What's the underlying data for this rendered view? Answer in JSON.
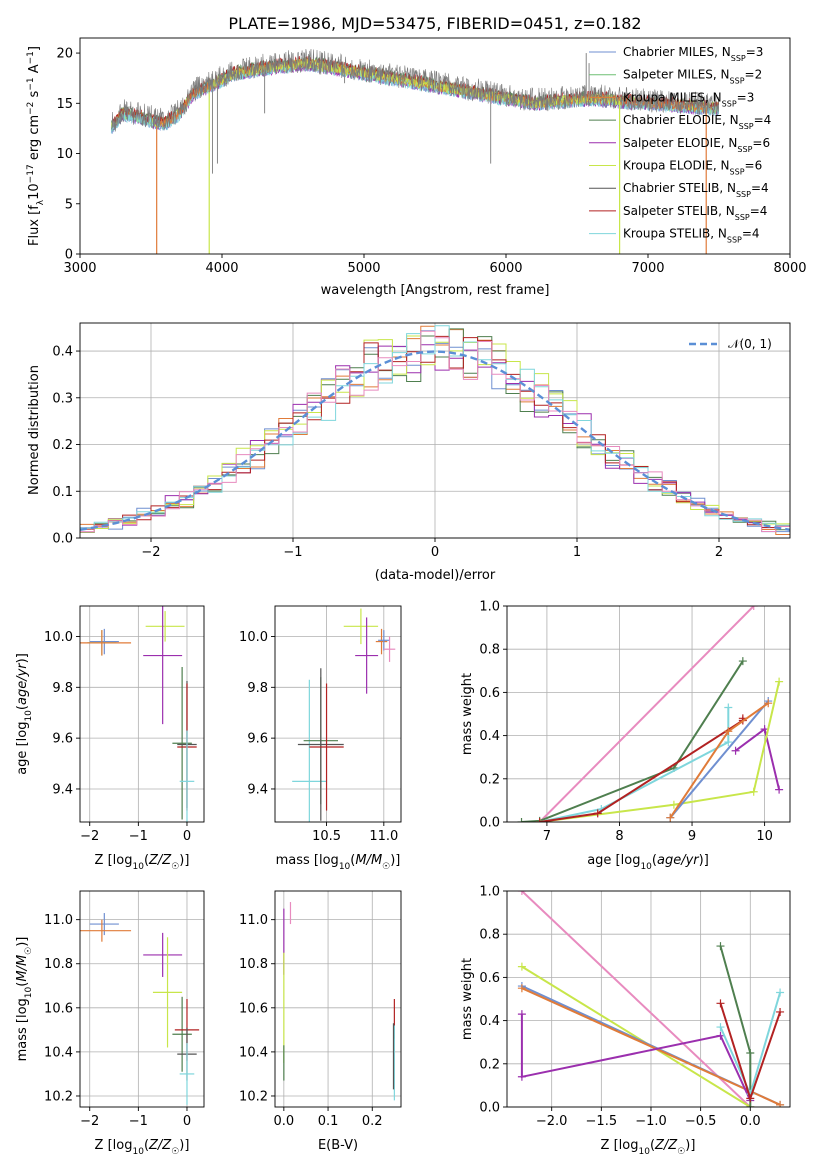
{
  "figure_title": "PLATE=1986, MJD=53475, FIBERID=0451, z=0.182",
  "colors": {
    "Chabrier MILES": "#6f8fd0",
    "Salpeter MILES": "#6fbf73",
    "Kroupa MILES": "#e07b39",
    "Chabrier ELODIE": "#4f7f4f",
    "Salpeter ELODIE": "#9b2fae",
    "Kroupa ELODIE": "#c8e64a",
    "Chabrier STELIB": "#555555",
    "Salpeter STELIB": "#b22222",
    "Kroupa STELIB": "#7fd6dc",
    "pink": "#e88bbf",
    "gauss": "#5b8fd6"
  },
  "chart_data": [
    {
      "id": "spectrum",
      "type": "line",
      "title": "PLATE=1986, MJD=53475, FIBERID=0451, z=0.182",
      "xlabel": "wavelength [Angstrom, rest frame]",
      "ylabel": "Flux [f_λ10^-17 erg cm^-2 s^-1 A^-1]",
      "xlim": [
        3000,
        8000
      ],
      "ylim": [
        0,
        21.5
      ],
      "xticks": [
        3000,
        4000,
        5000,
        6000,
        7000,
        8000
      ],
      "yticks": [
        0,
        5,
        10,
        15,
        20
      ],
      "grid": false,
      "legend_position": "top-right",
      "legend": [
        {
          "name": "Chabrier MILES",
          "nssp": "3"
        },
        {
          "name": "Salpeter MILES",
          "nssp": "2"
        },
        {
          "name": "Kroupa MILES",
          "nssp": "3"
        },
        {
          "name": "Chabrier ELODIE",
          "nssp": "4"
        },
        {
          "name": "Salpeter ELODIE",
          "nssp": "6"
        },
        {
          "name": "Kroupa ELODIE",
          "nssp": "6"
        },
        {
          "name": "Chabrier STELIB",
          "nssp": "4"
        },
        {
          "name": "Salpeter STELIB",
          "nssp": "4"
        },
        {
          "name": "Kroupa STELIB",
          "nssp": "4"
        }
      ],
      "data_range": [
        3220,
        7500
      ],
      "continuum": [
        [
          3220,
          12.5
        ],
        [
          3300,
          14
        ],
        [
          3450,
          13.5
        ],
        [
          3600,
          13
        ],
        [
          3700,
          14
        ],
        [
          3800,
          16
        ],
        [
          3950,
          17
        ],
        [
          4100,
          18
        ],
        [
          4300,
          18.5
        ],
        [
          4600,
          19
        ],
        [
          5000,
          18
        ],
        [
          5400,
          17
        ],
        [
          5800,
          16
        ],
        [
          6200,
          15
        ],
        [
          6600,
          15.5
        ],
        [
          7000,
          15
        ],
        [
          7500,
          14.5
        ]
      ],
      "emission_lines": [
        {
          "x": 6565,
          "y": 20
        },
        {
          "x": 6585,
          "y": 19
        },
        {
          "x": 4863,
          "y": 17
        }
      ],
      "absorption_lines": [
        {
          "x": 3933,
          "y": 8
        },
        {
          "x": 3968,
          "y": 9
        },
        {
          "x": 4300,
          "y": 14
        },
        {
          "x": 5892,
          "y": 9
        }
      ],
      "model_cutoffs": [
        {
          "series": "Kroupa MILES",
          "from": 3540,
          "to": 7410
        },
        {
          "series": "Kroupa ELODIE",
          "from": 3910,
          "to": 6800
        }
      ]
    },
    {
      "id": "residuals",
      "type": "histogram",
      "xlabel": "(data-model)/error",
      "ylabel": "Normed distribution",
      "xlim": [
        -2.5,
        2.5
      ],
      "ylim": [
        0,
        0.46
      ],
      "xticks": [
        -2,
        -1,
        0,
        1,
        2
      ],
      "yticks": [
        0.0,
        0.1,
        0.2,
        0.3,
        0.4
      ],
      "grid": true,
      "legend_position": "top-right",
      "legend_label": "𝒩(0, 1)",
      "bin_edges": {
        "start": -2.5,
        "width": 0.1,
        "count": 50
      },
      "gaussian": {
        "mu": 0,
        "sigma": 1
      }
    },
    {
      "id": "age_vs_Z",
      "type": "errorbar",
      "xlabel": "Z [log10(Z/Z☉)]",
      "ylabel": "age [log10(age/yr)]",
      "xlim": [
        -2.2,
        0.35
      ],
      "ylim": [
        9.27,
        10.12
      ],
      "xticks": [
        -2,
        -1,
        0
      ],
      "yticks": [
        9.4,
        9.6,
        9.8,
        10.0
      ],
      "grid": true,
      "points": [
        {
          "series": "Chabrier MILES",
          "x": -1.7,
          "xerr": 0.3,
          "y": 9.98,
          "yerr": 0.05
        },
        {
          "series": "Salpeter MILES",
          "x": -1.75,
          "xerr": 0.3,
          "y": 9.975,
          "yerr": 0.05
        },
        {
          "series": "Kroupa MILES",
          "x": -1.75,
          "xerr": 0.6,
          "y": 9.975,
          "yerr": 0.05
        },
        {
          "series": "Kroupa ELODIE",
          "x": -0.45,
          "xerr": 0.4,
          "y": 10.04,
          "yerr": 0.06
        },
        {
          "series": "Salpeter ELODIE",
          "x": -0.5,
          "xerr": 0.4,
          "y": 9.925,
          "yerr": 0.27
        },
        {
          "series": "Chabrier ELODIE",
          "x": -0.1,
          "xerr": 0.2,
          "y": 9.58,
          "yerr": 0.3
        },
        {
          "series": "Chabrier STELIB",
          "x": 0.0,
          "xerr": 0.2,
          "y": 9.575,
          "yerr": 0.25
        },
        {
          "series": "Salpeter STELIB",
          "x": 0.0,
          "xerr": 0.2,
          "y": 9.565,
          "yerr": 0.25
        },
        {
          "series": "Kroupa STELIB",
          "x": 0.0,
          "xerr": 0.15,
          "y": 9.43,
          "yerr": 0.2
        }
      ]
    },
    {
      "id": "age_vs_mass",
      "type": "errorbar",
      "xlabel": "mass [log10(M/M☉)]",
      "ylabel": "",
      "xlim": [
        10.05,
        11.15
      ],
      "ylim": [
        9.27,
        10.12
      ],
      "xticks": [
        10.5,
        11.0
      ],
      "yticks": [
        9.4,
        9.6,
        9.8,
        10.0
      ],
      "grid": true,
      "points": [
        {
          "series": "Kroupa ELODIE",
          "x": 10.8,
          "xerr": 0.15,
          "y": 10.04,
          "yerr": 0.07
        },
        {
          "series": "Salpeter ELODIE",
          "x": 10.85,
          "xerr": 0.1,
          "y": 9.925,
          "yerr": 0.15
        },
        {
          "series": "Kroupa MILES",
          "x": 10.98,
          "xerr": 0.05,
          "y": 9.98,
          "yerr": 0.05
        },
        {
          "series": "Chabrier MILES",
          "x": 11.0,
          "xerr": 0.05,
          "y": 9.985,
          "yerr": 0.04
        },
        {
          "series": "pink",
          "x": 11.05,
          "xerr": 0.05,
          "y": 9.95,
          "yerr": 0.05
        },
        {
          "series": "Kroupa STELIB",
          "x": 10.35,
          "xerr": 0.15,
          "y": 9.43,
          "yerr": 0.4
        },
        {
          "series": "Chabrier ELODIE",
          "x": 10.45,
          "xerr": 0.15,
          "y": 9.59,
          "yerr": 0.25
        },
        {
          "series": "Chabrier STELIB",
          "x": 10.45,
          "xerr": 0.2,
          "y": 9.575,
          "yerr": 0.3
        },
        {
          "series": "Salpeter STELIB",
          "x": 10.5,
          "xerr": 0.15,
          "y": 9.565,
          "yerr": 0.25
        }
      ]
    },
    {
      "id": "massweight_vs_age",
      "type": "line",
      "xlabel": "age [log10(age/yr)]",
      "ylabel": "mass weight",
      "xlim": [
        6.45,
        10.35
      ],
      "ylim": [
        0,
        1
      ],
      "xticks": [
        7,
        8,
        9,
        10
      ],
      "yticks": [
        0.0,
        0.2,
        0.4,
        0.6,
        0.8,
        1.0
      ],
      "grid": true,
      "series": [
        {
          "name": "pink",
          "points": [
            [
              6.9,
              0
            ],
            [
              9.85,
              1.0
            ]
          ]
        },
        {
          "name": "Chabrier ELODIE",
          "points": [
            [
              6.65,
              0
            ],
            [
              6.9,
              0.005
            ],
            [
              8.75,
              0.25
            ],
            [
              9.7,
              0.745
            ]
          ]
        },
        {
          "name": "Kroupa STELIB",
          "points": [
            [
              6.9,
              0
            ],
            [
              7.75,
              0.06
            ],
            [
              9.5,
              0.37
            ],
            [
              9.5,
              0.53
            ]
          ]
        },
        {
          "name": "Salpeter ELODIE",
          "points": [
            [
              9.6,
              0.33
            ],
            [
              10.0,
              0.43
            ],
            [
              10.2,
              0.15
            ]
          ]
        },
        {
          "name": "Kroupa ELODIE",
          "points": [
            [
              6.9,
              0
            ],
            [
              8.75,
              0.08
            ],
            [
              9.85,
              0.14
            ],
            [
              10.2,
              0.65
            ]
          ]
        },
        {
          "name": "Salpeter STELIB",
          "points": [
            [
              6.9,
              0
            ],
            [
              7.7,
              0.04
            ],
            [
              9.7,
              0.47
            ],
            [
              9.7,
              0.48
            ]
          ]
        },
        {
          "name": "Chabrier MILES",
          "points": [
            [
              8.7,
              0.02
            ],
            [
              10.05,
              0.56
            ]
          ]
        },
        {
          "name": "Kroupa MILES",
          "points": [
            [
              8.7,
              0.02
            ],
            [
              9.5,
              0.42
            ],
            [
              10.05,
              0.55
            ]
          ]
        }
      ]
    },
    {
      "id": "mass_vs_Z",
      "type": "errorbar",
      "xlabel": "Z [log10(Z/Z☉)]",
      "ylabel": "mass [log10(M/M☉)]",
      "xlim": [
        -2.2,
        0.35
      ],
      "ylim": [
        10.15,
        11.13
      ],
      "xticks": [
        -2,
        -1,
        0
      ],
      "yticks": [
        10.2,
        10.4,
        10.6,
        10.8,
        11.0
      ],
      "grid": true,
      "points": [
        {
          "series": "Chabrier MILES",
          "x": -1.7,
          "xerr": 0.3,
          "y": 10.98,
          "yerr": 0.05
        },
        {
          "series": "Kroupa MILES",
          "x": -1.75,
          "xerr": 0.6,
          "y": 10.95,
          "yerr": 0.05
        },
        {
          "series": "Salpeter ELODIE",
          "x": -0.5,
          "xerr": 0.4,
          "y": 10.84,
          "yerr": 0.1
        },
        {
          "series": "Kroupa ELODIE",
          "x": -0.4,
          "xerr": 0.3,
          "y": 10.67,
          "yerr": 0.25
        },
        {
          "series": "Chabrier ELODIE",
          "x": -0.1,
          "xerr": 0.2,
          "y": 10.48,
          "yerr": 0.17
        },
        {
          "series": "Salpeter STELIB",
          "x": 0.0,
          "xerr": 0.25,
          "y": 10.5,
          "yerr": 0.14
        },
        {
          "series": "Chabrier STELIB",
          "x": 0.0,
          "xerr": 0.2,
          "y": 10.39,
          "yerr": 0.12
        },
        {
          "series": "Kroupa STELIB",
          "x": 0.0,
          "xerr": 0.15,
          "y": 10.3,
          "yerr": 0.14
        }
      ]
    },
    {
      "id": "mass_vs_ebv",
      "type": "errorbar",
      "xlabel": "E(B-V)",
      "ylabel": "",
      "xlim": [
        -0.02,
        0.265
      ],
      "ylim": [
        10.15,
        11.13
      ],
      "xticks": [
        0.0,
        0.1,
        0.2
      ],
      "yticks": [
        10.2,
        10.4,
        10.6,
        10.8,
        11.0
      ],
      "grid": true,
      "points": [
        {
          "series": "pink",
          "x": 0.015,
          "y": 11.03,
          "yerr": 0.05
        },
        {
          "series": "Salpeter ELODIE",
          "x": 0.0,
          "y": 10.9,
          "yerr": 0.15
        },
        {
          "series": "Kroupa ELODIE",
          "x": 0.0,
          "y": 10.6,
          "yerr": 0.25
        },
        {
          "series": "Chabrier ELODIE",
          "x": 0.0,
          "y": 10.35,
          "yerr": 0.08
        },
        {
          "series": "Salpeter STELIB",
          "x": 0.25,
          "y": 10.55,
          "yerr": 0.09
        },
        {
          "series": "Kroupa STELIB",
          "x": 0.25,
          "y": 10.35,
          "yerr": 0.17
        },
        {
          "series": "Chabrier STELIB",
          "x": 0.248,
          "y": 10.38,
          "yerr": 0.15
        }
      ]
    },
    {
      "id": "massweight_vs_Z",
      "type": "line",
      "xlabel": "Z [log10(Z/Z☉)]",
      "ylabel": "mass weight",
      "xlim": [
        -2.45,
        0.4
      ],
      "ylim": [
        0,
        1
      ],
      "xticks": [
        -2.0,
        -1.5,
        -1.0,
        -0.5,
        0.0
      ],
      "yticks": [
        0.0,
        0.2,
        0.4,
        0.6,
        0.8,
        1.0
      ],
      "grid": true,
      "series": [
        {
          "name": "pink",
          "points": [
            [
              -2.3,
              1.0
            ],
            [
              0,
              0
            ]
          ]
        },
        {
          "name": "Kroupa ELODIE",
          "points": [
            [
              -2.3,
              0.65
            ],
            [
              0,
              0.0
            ]
          ]
        },
        {
          "name": "Chabrier MILES",
          "points": [
            [
              -2.3,
              0.56
            ],
            [
              0.3,
              0.01
            ]
          ]
        },
        {
          "name": "Kroupa MILES",
          "points": [
            [
              -2.3,
              0.55
            ],
            [
              0.3,
              0.01
            ]
          ]
        },
        {
          "name": "Salpeter ELODIE",
          "points": [
            [
              -2.3,
              0.43
            ],
            [
              -2.3,
              0.14
            ],
            [
              -0.3,
              0.33
            ],
            [
              0,
              0.03
            ]
          ]
        },
        {
          "name": "Chabrier ELODIE",
          "points": [
            [
              -0.3,
              0.745
            ],
            [
              0,
              0.25
            ],
            [
              0,
              0.0
            ]
          ]
        },
        {
          "name": "Kroupa STELIB",
          "points": [
            [
              -0.3,
              0.37
            ],
            [
              0,
              0.06
            ],
            [
              0.3,
              0.53
            ]
          ]
        },
        {
          "name": "Salpeter STELIB",
          "points": [
            [
              -0.3,
              0.48
            ],
            [
              0,
              0.04
            ],
            [
              0.3,
              0.44
            ]
          ]
        }
      ]
    }
  ]
}
